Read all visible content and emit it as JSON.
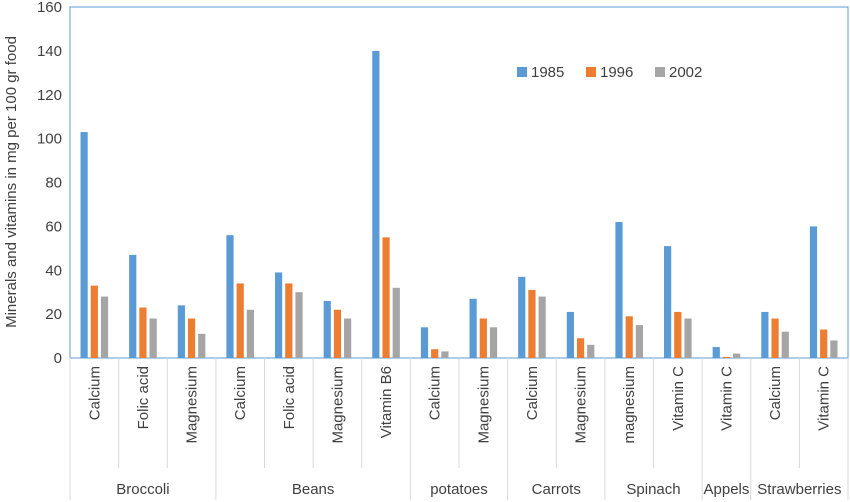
{
  "chart_data": {
    "type": "bar",
    "title": "",
    "xlabel": "",
    "ylabel": "Minerals and vitamins in mg per 100 gr food",
    "ylim": [
      0,
      160
    ],
    "yticks": [
      0,
      20,
      40,
      60,
      80,
      100,
      120,
      140,
      160
    ],
    "grid": false,
    "legend_position": "top-right",
    "groups": [
      {
        "label": "Broccoli",
        "size": 3
      },
      {
        "label": "Beans",
        "size": 4
      },
      {
        "label": "potatoes",
        "size": 2
      },
      {
        "label": "Carrots",
        "size": 2
      },
      {
        "label": "Spinach",
        "size": 2
      },
      {
        "label": "Appels",
        "size": 1
      },
      {
        "label": "Strawberries",
        "size": 2
      }
    ],
    "categories": [
      "Calcium",
      "Folic acid",
      "Magnesium",
      "Calcium",
      "Folic acid",
      "Magnesium",
      "Vitamin B6",
      "Calcium",
      "Magnesium",
      "Calcium",
      "Magnesium",
      "magnesium",
      "Vitamin C",
      "Vitamin C",
      "Calcium",
      "Vitamin C"
    ],
    "series": [
      {
        "name": "1985",
        "color": "#5B9BD5",
        "values": [
          103,
          47,
          24,
          56,
          39,
          26,
          140,
          14,
          27,
          37,
          21,
          62,
          51,
          5,
          21,
          60
        ]
      },
      {
        "name": "1996",
        "color": "#ED7D31",
        "values": [
          33,
          23,
          18,
          34,
          34,
          22,
          55,
          4,
          18,
          31,
          9,
          19,
          21,
          0.5,
          18,
          13
        ]
      },
      {
        "name": "2002",
        "color": "#A5A5A5",
        "values": [
          28,
          18,
          11,
          22,
          30,
          18,
          32,
          3,
          14,
          28,
          6,
          15,
          18,
          2,
          12,
          8
        ]
      }
    ]
  }
}
